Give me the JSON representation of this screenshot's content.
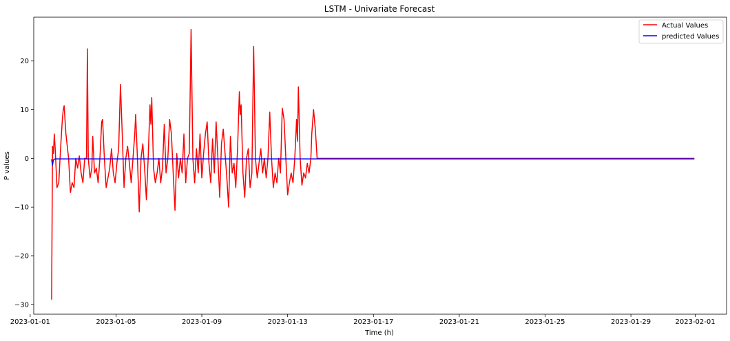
{
  "chart_data": {
    "type": "line",
    "title": "LSTM - Univariate Forecast",
    "xlabel": "Time (h)",
    "ylabel": "P values",
    "xlim": [
      "2023-01-01T04:00",
      "2023-02-02T11:00"
    ],
    "ylim": [
      -32,
      29
    ],
    "x_ticks": [
      "2023-01-01",
      "2023-01-05",
      "2023-01-09",
      "2023-01-13",
      "2023-01-17",
      "2023-01-21",
      "2023-01-25",
      "2023-01-29",
      "2023-02-01"
    ],
    "y_ticks": [
      -30,
      -20,
      -10,
      0,
      10,
      20
    ],
    "grid": false,
    "legend_position": "top-right",
    "series": [
      {
        "name": "Actual Values",
        "color": "#ff0000",
        "points": [
          [
            "2023-01-02T00:00",
            -29
          ],
          [
            "2023-01-02T01:00",
            2.5
          ],
          [
            "2023-01-02T02:00",
            1
          ],
          [
            "2023-01-02T03:00",
            5
          ],
          [
            "2023-01-02T04:00",
            2
          ],
          [
            "2023-01-02T06:00",
            -6
          ],
          [
            "2023-01-02T08:00",
            -5
          ],
          [
            "2023-01-02T10:00",
            2
          ],
          [
            "2023-01-02T12:00",
            8
          ],
          [
            "2023-01-02T13:00",
            10
          ],
          [
            "2023-01-02T14:00",
            10.8
          ],
          [
            "2023-01-02T16:00",
            5
          ],
          [
            "2023-01-02T19:00",
            0
          ],
          [
            "2023-01-02T21:00",
            -7
          ],
          [
            "2023-01-02T23:00",
            -5
          ],
          [
            "2023-01-03T01:00",
            -6
          ],
          [
            "2023-01-03T03:00",
            0
          ],
          [
            "2023-01-03T05:00",
            -2
          ],
          [
            "2023-01-03T07:00",
            0.5
          ],
          [
            "2023-01-03T09:00",
            -3
          ],
          [
            "2023-01-03T11:00",
            -5
          ],
          [
            "2023-01-03T13:00",
            0
          ],
          [
            "2023-01-03T15:00",
            0
          ],
          [
            "2023-01-03T16:00",
            22.5
          ],
          [
            "2023-01-03T17:00",
            0
          ],
          [
            "2023-01-03T19:00",
            -4
          ],
          [
            "2023-01-03T21:00",
            -2
          ],
          [
            "2023-01-03T22:00",
            4.5
          ],
          [
            "2023-01-04T00:00",
            -3
          ],
          [
            "2023-01-04T02:00",
            -2
          ],
          [
            "2023-01-04T04:00",
            -5
          ],
          [
            "2023-01-04T06:00",
            0
          ],
          [
            "2023-01-04T08:00",
            7.5
          ],
          [
            "2023-01-04T09:00",
            8
          ],
          [
            "2023-01-04T11:00",
            0
          ],
          [
            "2023-01-04T13:00",
            -6
          ],
          [
            "2023-01-04T15:00",
            -4
          ],
          [
            "2023-01-04T17:00",
            -2
          ],
          [
            "2023-01-04T19:00",
            2
          ],
          [
            "2023-01-04T21:00",
            -3
          ],
          [
            "2023-01-04T23:00",
            -5
          ],
          [
            "2023-01-05T01:00",
            -1
          ],
          [
            "2023-01-05T03:00",
            2
          ],
          [
            "2023-01-05T05:00",
            15.2
          ],
          [
            "2023-01-05T07:00",
            5
          ],
          [
            "2023-01-05T09:00",
            -6
          ],
          [
            "2023-01-05T11:00",
            0
          ],
          [
            "2023-01-05T13:00",
            2.5
          ],
          [
            "2023-01-05T15:00",
            -1
          ],
          [
            "2023-01-05T17:00",
            -5
          ],
          [
            "2023-01-05T19:00",
            0
          ],
          [
            "2023-01-05T21:00",
            5
          ],
          [
            "2023-01-05T22:00",
            9
          ],
          [
            "2023-01-06T00:00",
            0
          ],
          [
            "2023-01-06T02:00",
            -11
          ],
          [
            "2023-01-06T04:00",
            0
          ],
          [
            "2023-01-06T06:00",
            3
          ],
          [
            "2023-01-06T08:00",
            -2
          ],
          [
            "2023-01-06T10:00",
            -8.5
          ],
          [
            "2023-01-06T12:00",
            0
          ],
          [
            "2023-01-06T14:00",
            11
          ],
          [
            "2023-01-06T15:00",
            7
          ],
          [
            "2023-01-06T16:00",
            12.5
          ],
          [
            "2023-01-06T18:00",
            -2
          ],
          [
            "2023-01-06T20:00",
            -5
          ],
          [
            "2023-01-06T22:00",
            -3
          ],
          [
            "2023-01-07T00:00",
            0
          ],
          [
            "2023-01-07T02:00",
            -5
          ],
          [
            "2023-01-07T04:00",
            -2
          ],
          [
            "2023-01-07T06:00",
            7
          ],
          [
            "2023-01-07T08:00",
            -3
          ],
          [
            "2023-01-07T10:00",
            0
          ],
          [
            "2023-01-07T12:00",
            8
          ],
          [
            "2023-01-07T14:00",
            5
          ],
          [
            "2023-01-07T16:00",
            -3
          ],
          [
            "2023-01-07T18:00",
            -10.7
          ],
          [
            "2023-01-07T20:00",
            1
          ],
          [
            "2023-01-07T22:00",
            -4
          ],
          [
            "2023-01-08T00:00",
            0
          ],
          [
            "2023-01-08T02:00",
            -3
          ],
          [
            "2023-01-08T04:00",
            5
          ],
          [
            "2023-01-08T06:00",
            -5
          ],
          [
            "2023-01-08T08:00",
            0
          ],
          [
            "2023-01-08T10:00",
            1
          ],
          [
            "2023-01-08T12:00",
            26.5
          ],
          [
            "2023-01-08T14:00",
            0
          ],
          [
            "2023-01-08T16:00",
            -5
          ],
          [
            "2023-01-08T18:00",
            2
          ],
          [
            "2023-01-08T20:00",
            -3
          ],
          [
            "2023-01-08T22:00",
            5
          ],
          [
            "2023-01-09T00:00",
            -4
          ],
          [
            "2023-01-09T02:00",
            1
          ],
          [
            "2023-01-09T04:00",
            5
          ],
          [
            "2023-01-09T06:00",
            7.5
          ],
          [
            "2023-01-09T08:00",
            -1
          ],
          [
            "2023-01-09T10:00",
            -5
          ],
          [
            "2023-01-09T12:00",
            4
          ],
          [
            "2023-01-09T14:00",
            -3
          ],
          [
            "2023-01-09T16:00",
            7.5
          ],
          [
            "2023-01-09T18:00",
            0
          ],
          [
            "2023-01-09T20:00",
            -8
          ],
          [
            "2023-01-09T22:00",
            3
          ],
          [
            "2023-01-10T00:00",
            6
          ],
          [
            "2023-01-10T02:00",
            1
          ],
          [
            "2023-01-10T04:00",
            -4
          ],
          [
            "2023-01-10T06:00",
            -10
          ],
          [
            "2023-01-10T08:00",
            4.5
          ],
          [
            "2023-01-10T10:00",
            -3
          ],
          [
            "2023-01-10T12:00",
            -1
          ],
          [
            "2023-01-10T14:00",
            -6
          ],
          [
            "2023-01-10T16:00",
            2
          ],
          [
            "2023-01-10T18:00",
            13.7
          ],
          [
            "2023-01-10T19:00",
            9
          ],
          [
            "2023-01-10T20:00",
            11
          ],
          [
            "2023-01-10T22:00",
            -3
          ],
          [
            "2023-01-11T00:00",
            -8
          ],
          [
            "2023-01-11T02:00",
            0
          ],
          [
            "2023-01-11T04:00",
            2
          ],
          [
            "2023-01-11T06:00",
            -6
          ],
          [
            "2023-01-11T08:00",
            -3
          ],
          [
            "2023-01-11T10:00",
            23
          ],
          [
            "2023-01-11T12:00",
            0
          ],
          [
            "2023-01-11T14:00",
            -4
          ],
          [
            "2023-01-11T16:00",
            -1
          ],
          [
            "2023-01-11T18:00",
            2
          ],
          [
            "2023-01-11T20:00",
            -3
          ],
          [
            "2023-01-11T22:00",
            0
          ],
          [
            "2023-01-12T00:00",
            -4
          ],
          [
            "2023-01-12T02:00",
            0
          ],
          [
            "2023-01-12T04:00",
            9.5
          ],
          [
            "2023-01-12T06:00",
            0
          ],
          [
            "2023-01-12T08:00",
            -6
          ],
          [
            "2023-01-12T10:00",
            -3
          ],
          [
            "2023-01-12T12:00",
            -5
          ],
          [
            "2023-01-12T14:00",
            0
          ],
          [
            "2023-01-12T16:00",
            -3
          ],
          [
            "2023-01-12T18:00",
            10.3
          ],
          [
            "2023-01-12T20:00",
            8
          ],
          [
            "2023-01-12T22:00",
            0
          ],
          [
            "2023-01-13T00:00",
            -7.5
          ],
          [
            "2023-01-13T02:00",
            -5
          ],
          [
            "2023-01-13T04:00",
            -3
          ],
          [
            "2023-01-13T06:00",
            -5
          ],
          [
            "2023-01-13T08:00",
            0
          ],
          [
            "2023-01-13T10:00",
            8
          ],
          [
            "2023-01-13T11:00",
            3.5
          ],
          [
            "2023-01-13T12:00",
            14.7
          ],
          [
            "2023-01-13T14:00",
            0
          ],
          [
            "2023-01-13T16:00",
            -5.5
          ],
          [
            "2023-01-13T18:00",
            -3
          ],
          [
            "2023-01-13T20:00",
            -4
          ],
          [
            "2023-01-13T22:00",
            -1
          ],
          [
            "2023-01-14T00:00",
            -3
          ],
          [
            "2023-01-14T02:00",
            0
          ],
          [
            "2023-01-14T03:00",
            5
          ],
          [
            "2023-01-14T05:00",
            10
          ],
          [
            "2023-01-14T07:00",
            6
          ],
          [
            "2023-01-14T09:00",
            0
          ],
          [
            "2023-01-14T10:00",
            0
          ],
          [
            "2023-01-31T23:00",
            0
          ]
        ]
      },
      {
        "name": "predicted Values",
        "color": "#0000ff",
        "points": [
          [
            "2023-01-02T00:00",
            -0.2
          ],
          [
            "2023-01-02T01:00",
            -1.4
          ],
          [
            "2023-01-02T02:00",
            -0.3
          ],
          [
            "2023-01-02T04:00",
            -0.1
          ],
          [
            "2023-01-31T23:00",
            -0.1
          ]
        ]
      }
    ]
  }
}
